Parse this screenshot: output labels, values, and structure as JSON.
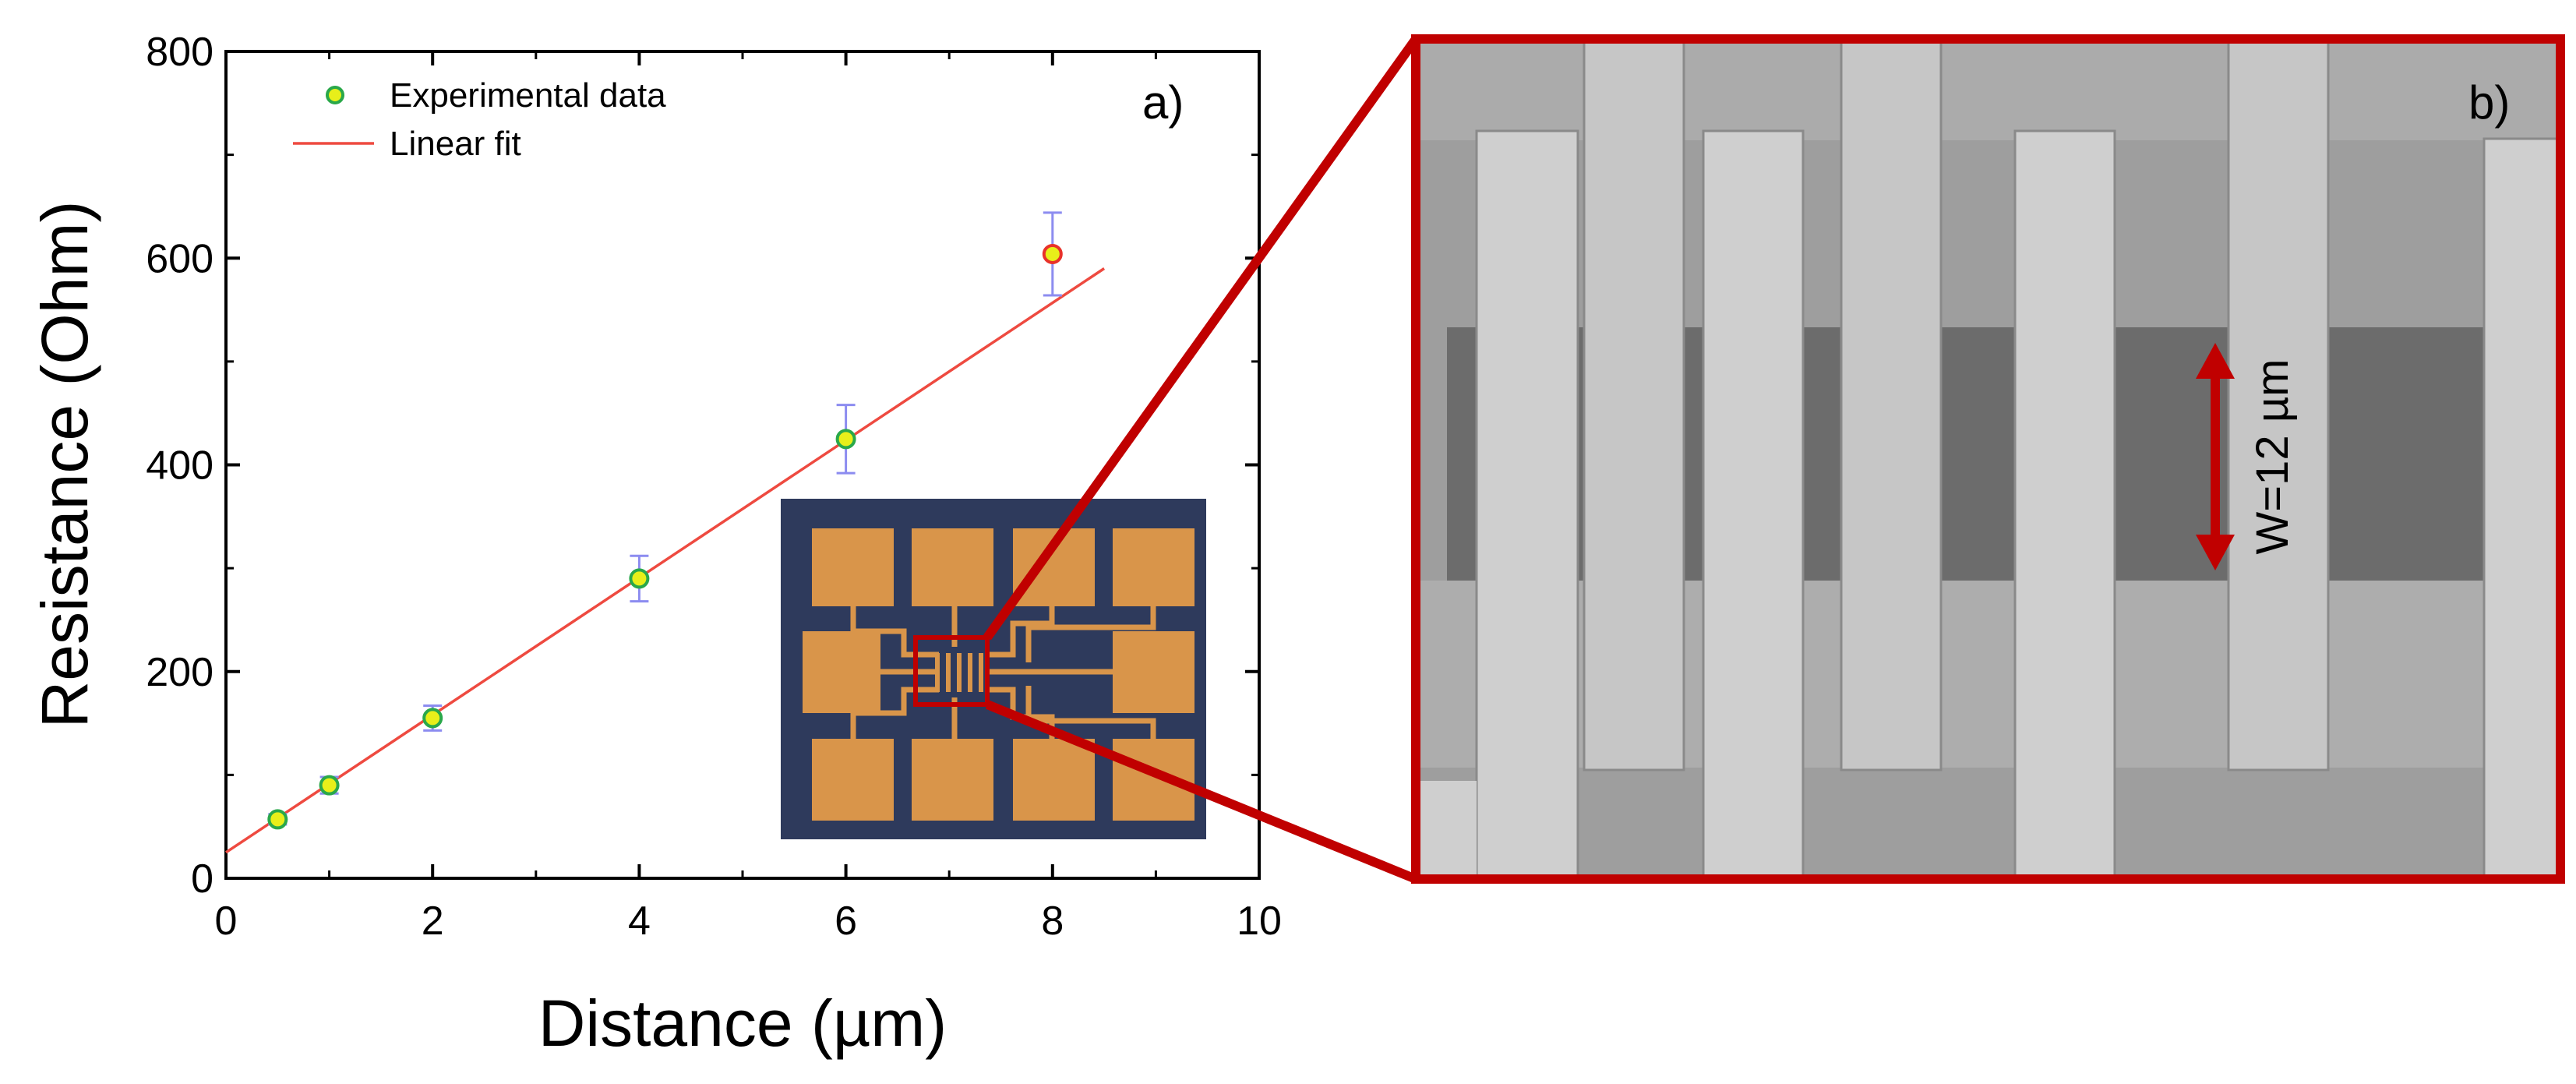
{
  "chart_data": {
    "type": "scatter",
    "xlabel": "Distance (µm)",
    "ylabel": "Resistance (Ohm)",
    "xlim": [
      0,
      10
    ],
    "ylim": [
      0,
      800
    ],
    "xticks": [
      0,
      2,
      4,
      6,
      8,
      10
    ],
    "yticks": [
      0,
      200,
      400,
      600,
      800
    ],
    "panel_label": "a)",
    "legend": {
      "position": "top-left",
      "entries": [
        "Experimental data",
        "Linear fit"
      ]
    },
    "series": [
      {
        "name": "Experimental data",
        "kind": "points-with-error-bars",
        "x": [
          0.5,
          1,
          2,
          4,
          6,
          8
        ],
        "y": [
          57,
          90,
          155,
          290,
          425,
          604
        ],
        "yerr": [
          5,
          8,
          12,
          22,
          33,
          40
        ]
      },
      {
        "name": "Linear fit",
        "kind": "line",
        "x": [
          0,
          8.5
        ],
        "y": [
          25,
          590
        ]
      }
    ]
  },
  "sem_panel": {
    "panel_label": "b)",
    "annotation": "W=12 µm"
  },
  "colors": {
    "marker_fill": "#e8ef1a",
    "marker_edge": "#2aa84a",
    "marker_outlier_edge": "#e8322a",
    "error_bar": "#8c8cf0",
    "fit_line": "#ee4a40",
    "zoom_frame": "#c00000",
    "chip_background": "#2e3a5c",
    "chip_pad": "#d9954a",
    "sem_background": "#9a9a9a",
    "sem_finger": "#cbcbcb",
    "sem_channel": "#6c6c6c"
  }
}
